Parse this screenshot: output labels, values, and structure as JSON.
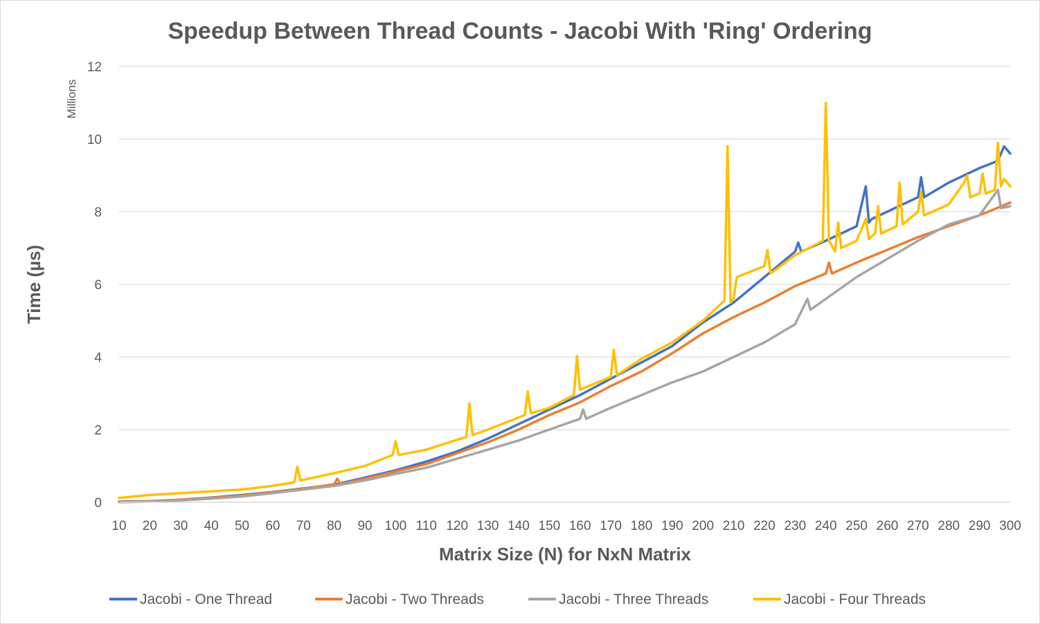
{
  "chart_data": {
    "type": "line",
    "title": "Speedup Between Thread Counts - Jacobi With 'Ring' Ordering",
    "xlabel": "Matrix Size (N) for NxN Matrix",
    "ylabel": "Time (µs)",
    "y_unit_label": "Millions",
    "xlim": [
      10,
      300
    ],
    "ylim": [
      0,
      12
    ],
    "x_ticks": [
      "10",
      "20",
      "30",
      "40",
      "50",
      "60",
      "70",
      "80",
      "90",
      "100",
      "110",
      "120",
      "130",
      "140",
      "150",
      "160",
      "170",
      "180",
      "190",
      "200",
      "210",
      "220",
      "230",
      "240",
      "250",
      "260",
      "270",
      "280",
      "290",
      "300"
    ],
    "y_ticks": [
      "0",
      "2",
      "4",
      "6",
      "8",
      "10",
      "12"
    ],
    "grid": true,
    "legend_position": "bottom",
    "series": [
      {
        "name": "Jacobi - One Thread",
        "color": "#4472c4",
        "x": [
          10,
          20,
          30,
          40,
          50,
          60,
          70,
          80,
          90,
          100,
          110,
          120,
          130,
          140,
          150,
          160,
          170,
          180,
          190,
          200,
          210,
          220,
          230,
          231,
          232,
          240,
          250,
          253,
          254,
          255,
          260,
          270,
          271,
          272,
          280,
          290,
          296,
          298,
          300
        ],
        "y": [
          0.02,
          0.03,
          0.07,
          0.13,
          0.2,
          0.28,
          0.38,
          0.48,
          0.68,
          0.88,
          1.12,
          1.4,
          1.75,
          2.15,
          2.55,
          2.95,
          3.4,
          3.85,
          4.3,
          4.95,
          5.5,
          6.2,
          6.9,
          7.15,
          6.9,
          7.2,
          7.6,
          8.7,
          7.7,
          7.8,
          8.0,
          8.4,
          8.95,
          8.4,
          8.8,
          9.2,
          9.4,
          9.8,
          9.6
        ]
      },
      {
        "name": "Jacobi - Two Threads",
        "color": "#ed7d31",
        "x": [
          10,
          20,
          30,
          40,
          50,
          60,
          70,
          80,
          81,
          82,
          90,
          100,
          110,
          120,
          130,
          140,
          150,
          160,
          170,
          180,
          190,
          200,
          210,
          220,
          230,
          240,
          241,
          242,
          250,
          260,
          270,
          280,
          290,
          300
        ],
        "y": [
          0.01,
          0.03,
          0.07,
          0.12,
          0.18,
          0.27,
          0.37,
          0.5,
          0.65,
          0.5,
          0.65,
          0.85,
          1.05,
          1.35,
          1.65,
          2.0,
          2.4,
          2.75,
          3.2,
          3.6,
          4.1,
          4.65,
          5.1,
          5.5,
          5.95,
          6.3,
          6.6,
          6.3,
          6.6,
          6.95,
          7.3,
          7.6,
          7.9,
          8.25
        ]
      },
      {
        "name": "Jacobi - Three Threads",
        "color": "#a5a5a5",
        "x": [
          10,
          20,
          30,
          40,
          50,
          60,
          70,
          80,
          90,
          100,
          110,
          120,
          130,
          140,
          150,
          160,
          161,
          162,
          170,
          180,
          190,
          200,
          210,
          220,
          230,
          234,
          235,
          240,
          250,
          260,
          270,
          280,
          290,
          296,
          297,
          300
        ],
        "y": [
          0.0,
          0.02,
          0.05,
          0.1,
          0.16,
          0.25,
          0.35,
          0.45,
          0.6,
          0.78,
          0.95,
          1.2,
          1.45,
          1.7,
          2.0,
          2.3,
          2.55,
          2.3,
          2.6,
          2.95,
          3.3,
          3.6,
          4.0,
          4.4,
          4.9,
          5.6,
          5.3,
          5.6,
          6.2,
          6.7,
          7.2,
          7.65,
          7.9,
          8.6,
          8.1,
          8.15
        ]
      },
      {
        "name": "Jacobi - Four Threads",
        "color": "#ffc000",
        "x": [
          10,
          20,
          30,
          40,
          50,
          60,
          67,
          68,
          69,
          80,
          90,
          99,
          100,
          101,
          110,
          123,
          124,
          125,
          130,
          142,
          143,
          144,
          150,
          158,
          159,
          160,
          170,
          171,
          172,
          180,
          190,
          200,
          207,
          208,
          209,
          210,
          211,
          220,
          221,
          222,
          230,
          239,
          240,
          241,
          243,
          244,
          245,
          250,
          253,
          254,
          256,
          257,
          258,
          263,
          264,
          265,
          270,
          271,
          272,
          280,
          285,
          286,
          287,
          290,
          291,
          292,
          295,
          296,
          297,
          298,
          300
        ],
        "y": [
          0.12,
          0.2,
          0.25,
          0.3,
          0.35,
          0.45,
          0.55,
          0.98,
          0.6,
          0.8,
          1.0,
          1.3,
          1.68,
          1.3,
          1.45,
          1.8,
          2.72,
          1.85,
          2.0,
          2.4,
          3.05,
          2.45,
          2.6,
          2.95,
          4.02,
          3.1,
          3.45,
          4.2,
          3.5,
          3.95,
          4.4,
          5.0,
          5.55,
          9.8,
          5.5,
          5.6,
          6.2,
          6.5,
          6.95,
          6.3,
          6.8,
          7.2,
          11.0,
          7.2,
          6.9,
          7.7,
          7.0,
          7.2,
          7.8,
          7.25,
          7.4,
          8.15,
          7.4,
          7.6,
          8.8,
          7.65,
          8.0,
          8.55,
          7.9,
          8.2,
          8.8,
          9.0,
          8.4,
          8.5,
          9.05,
          8.5,
          8.6,
          9.9,
          8.7,
          8.9,
          8.7
        ]
      }
    ]
  }
}
